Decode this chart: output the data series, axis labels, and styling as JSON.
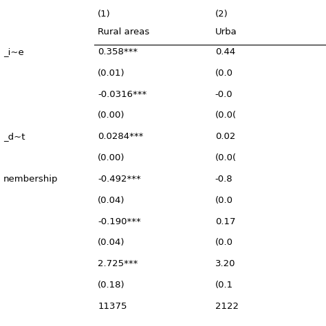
{
  "col_headers_row1": [
    "",
    "(1)",
    "(2)"
  ],
  "col_headers_row2": [
    "",
    "Rural areas",
    "Urba"
  ],
  "rows": [
    [
      "_i~e",
      "0.358***",
      "0.44"
    ],
    [
      "",
      "(0.01)",
      "(0.0"
    ],
    [
      "",
      "-0.0316***",
      "-0.0"
    ],
    [
      "",
      "(0.00)",
      "(0.0("
    ],
    [
      "_d~t",
      "0.0284***",
      "0.02"
    ],
    [
      "",
      "(0.00)",
      "(0.0("
    ],
    [
      "nembership",
      "-0.492***",
      "-0.8"
    ],
    [
      "",
      "(0.04)",
      "(0.0"
    ],
    [
      "",
      "-0.190***",
      "0.17"
    ],
    [
      "",
      "(0.04)",
      "(0.0"
    ],
    [
      "",
      "2.725***",
      "3.20"
    ],
    [
      "",
      "(0.18)",
      "(0.1"
    ],
    [
      "",
      "11375",
      "2122"
    ]
  ],
  "fig_width": 4.74,
  "fig_height": 4.74,
  "font_size": 9.5,
  "header_font_size": 9.5,
  "bg_color": "#ffffff",
  "text_color": "#000000",
  "line_color": "#000000"
}
